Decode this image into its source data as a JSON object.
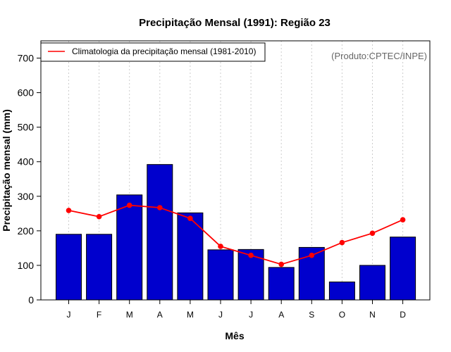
{
  "chart_data": {
    "type": "bar",
    "title": "Precipitação Mensal (1991): Região 23",
    "xlabel": "Mês",
    "ylabel": "Precipitação mensal (mm)",
    "categories": [
      "J",
      "F",
      "M",
      "A",
      "M",
      "J",
      "J",
      "A",
      "S",
      "O",
      "N",
      "D"
    ],
    "ylim": [
      0,
      750
    ],
    "yticks": [
      0,
      100,
      200,
      300,
      400,
      500,
      600,
      700
    ],
    "grid": "vertical dotted",
    "series": [
      {
        "name": "Precipitação mensal (1991)",
        "kind": "bar",
        "color": "#0000cd",
        "values": [
          190,
          190,
          304,
          392,
          252,
          145,
          146,
          94,
          152,
          52,
          100,
          182
        ]
      },
      {
        "name": "Climatologia da precipitação mensal (1981-2010)",
        "kind": "line",
        "color": "#ff0000",
        "values": [
          259,
          241,
          274,
          267,
          236,
          155,
          129,
          103,
          129,
          166,
          193,
          232
        ]
      }
    ],
    "legend": {
      "position": "top-left",
      "label": "Climatologia da precipitação mensal (1981-2010)"
    },
    "annotation": "(Produto:CPTEC/INPE)"
  }
}
